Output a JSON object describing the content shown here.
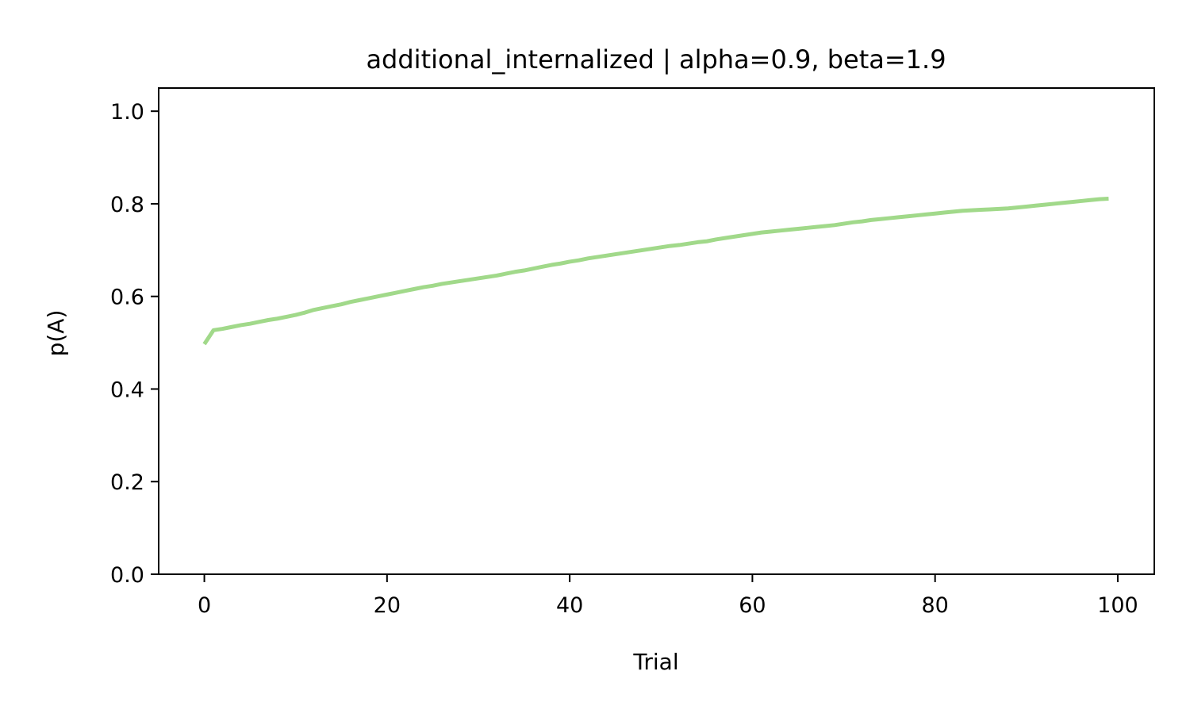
{
  "chart_data": {
    "type": "line",
    "title": "additional_internalized | alpha=0.9, beta=1.9",
    "xlabel": "Trial",
    "ylabel": "p(A)",
    "xlim": [
      -5,
      104
    ],
    "ylim": [
      0.0,
      1.05
    ],
    "xticks": [
      0,
      20,
      40,
      60,
      80,
      100
    ],
    "xtick_labels": [
      "0",
      "20",
      "40",
      "60",
      "80",
      "100"
    ],
    "yticks": [
      0.0,
      0.2,
      0.4,
      0.6,
      0.8,
      1.0
    ],
    "ytick_labels": [
      "0.0",
      "0.2",
      "0.4",
      "0.6",
      "0.8",
      "1.0"
    ],
    "grid": false,
    "legend": "none",
    "series": [
      {
        "color": "#a1d98a",
        "x": [
          0,
          1,
          2,
          3,
          4,
          5,
          6,
          7,
          8,
          9,
          10,
          11,
          12,
          13,
          14,
          15,
          16,
          17,
          18,
          19,
          20,
          21,
          22,
          23,
          24,
          25,
          26,
          27,
          28,
          29,
          30,
          31,
          32,
          33,
          34,
          35,
          36,
          37,
          38,
          39,
          40,
          41,
          42,
          43,
          44,
          45,
          46,
          47,
          48,
          49,
          50,
          51,
          52,
          53,
          54,
          55,
          56,
          57,
          58,
          59,
          60,
          61,
          62,
          63,
          64,
          65,
          66,
          67,
          68,
          69,
          70,
          71,
          72,
          73,
          74,
          75,
          76,
          77,
          78,
          79,
          80,
          81,
          82,
          83,
          84,
          85,
          86,
          87,
          88,
          89,
          90,
          91,
          92,
          93,
          94,
          95,
          96,
          97,
          98,
          99
        ],
        "y": [
          0.497,
          0.527,
          0.53,
          0.534,
          0.538,
          0.541,
          0.545,
          0.549,
          0.552,
          0.556,
          0.56,
          0.565,
          0.571,
          0.575,
          0.579,
          0.583,
          0.588,
          0.592,
          0.596,
          0.6,
          0.604,
          0.608,
          0.612,
          0.616,
          0.62,
          0.623,
          0.627,
          0.63,
          0.633,
          0.636,
          0.639,
          0.642,
          0.645,
          0.649,
          0.653,
          0.656,
          0.66,
          0.664,
          0.668,
          0.671,
          0.675,
          0.678,
          0.682,
          0.685,
          0.688,
          0.691,
          0.694,
          0.697,
          0.7,
          0.703,
          0.706,
          0.709,
          0.711,
          0.714,
          0.717,
          0.719,
          0.723,
          0.726,
          0.729,
          0.732,
          0.735,
          0.738,
          0.74,
          0.742,
          0.744,
          0.746,
          0.748,
          0.75,
          0.752,
          0.754,
          0.757,
          0.76,
          0.762,
          0.765,
          0.767,
          0.769,
          0.771,
          0.773,
          0.775,
          0.777,
          0.779,
          0.781,
          0.783,
          0.785,
          0.786,
          0.787,
          0.788,
          0.789,
          0.79,
          0.792,
          0.794,
          0.796,
          0.798,
          0.8,
          0.802,
          0.804,
          0.806,
          0.808,
          0.81,
          0.811
        ]
      }
    ]
  }
}
